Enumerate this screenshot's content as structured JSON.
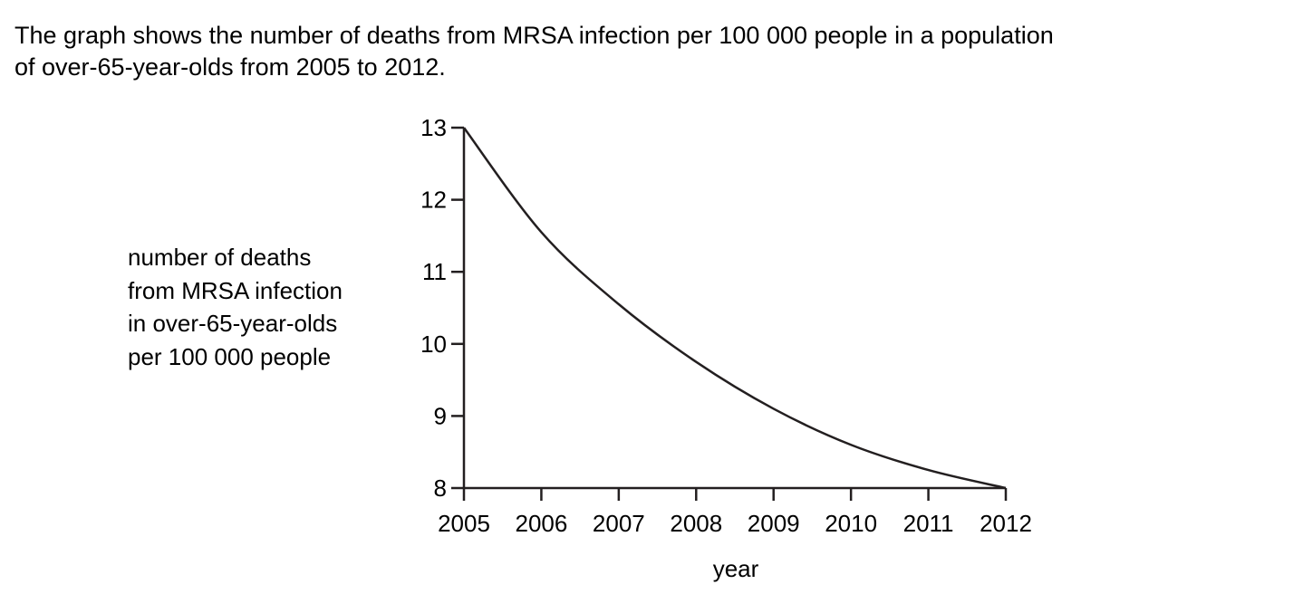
{
  "intro": {
    "line1": "The graph shows the number of deaths from MRSA infection per 100 000 people in a population",
    "line2": "of over-65-year-olds from 2005 to 2012."
  },
  "chart_data": {
    "type": "line",
    "title": "",
    "xlabel": "year",
    "ylabel_lines": [
      "number of deaths",
      "from MRSA infection",
      "in over-65-year-olds",
      "per 100 000 people"
    ],
    "x": [
      2005,
      2006,
      2007,
      2008,
      2009,
      2010,
      2011,
      2012
    ],
    "y": [
      13.0,
      11.55,
      10.55,
      9.75,
      9.1,
      8.6,
      8.25,
      8.0
    ],
    "xticks": [
      "2005",
      "2006",
      "2007",
      "2008",
      "2009",
      "2010",
      "2011",
      "2012"
    ],
    "yticks": [
      "8",
      "9",
      "10",
      "11",
      "12",
      "13"
    ],
    "xlim": [
      2005,
      2012
    ],
    "ylim": [
      8,
      13
    ],
    "grid": false,
    "line_color": "#231f20"
  }
}
